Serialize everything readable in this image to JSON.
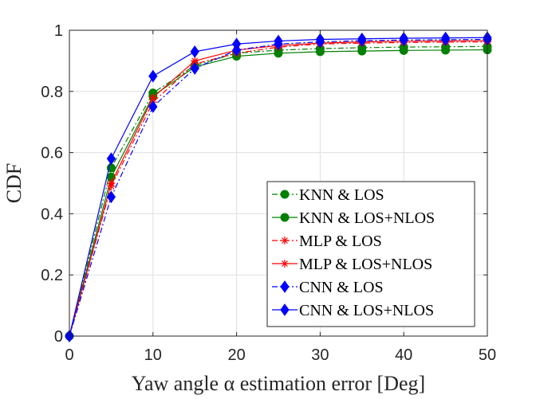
{
  "chart_data": {
    "type": "line",
    "title": "",
    "xlabel": "Yaw angle α estimation error [Deg]",
    "ylabel": "CDF",
    "xlim": [
      0,
      50
    ],
    "ylim": [
      0,
      1
    ],
    "xticks": [
      0,
      10,
      20,
      30,
      40,
      50
    ],
    "yticks": [
      0,
      0.2,
      0.4,
      0.6,
      0.8,
      1
    ],
    "xtick_labels": [
      "0",
      "10",
      "20",
      "30",
      "40",
      "50"
    ],
    "ytick_labels": [
      "0",
      "0.2",
      "0.4",
      "0.6",
      "0.8",
      "1"
    ],
    "grid": true,
    "legend_position": "bottom-right",
    "x": [
      0,
      5,
      10,
      15,
      20,
      25,
      30,
      35,
      40,
      45,
      50
    ],
    "series": [
      {
        "name": "KNN & LOS",
        "color": "#008000",
        "marker": "circle",
        "dash": "dashdot",
        "values": [
          0,
          0.55,
          0.795,
          0.885,
          0.925,
          0.935,
          0.94,
          0.943,
          0.945,
          0.946,
          0.947
        ]
      },
      {
        "name": "KNN & LOS+NLOS",
        "color": "#008000",
        "marker": "circle",
        "dash": "solid",
        "values": [
          0,
          0.52,
          0.785,
          0.88,
          0.915,
          0.925,
          0.93,
          0.932,
          0.934,
          0.935,
          0.936
        ]
      },
      {
        "name": "MLP & LOS",
        "color": "#ff0000",
        "marker": "star",
        "dash": "dashdot",
        "values": [
          0,
          0.49,
          0.765,
          0.89,
          0.925,
          0.945,
          0.955,
          0.958,
          0.96,
          0.961,
          0.962
        ]
      },
      {
        "name": "MLP & LOS+NLOS",
        "color": "#ff0000",
        "marker": "star",
        "dash": "solid",
        "values": [
          0,
          0.5,
          0.78,
          0.9,
          0.935,
          0.95,
          0.958,
          0.962,
          0.964,
          0.965,
          0.966
        ]
      },
      {
        "name": "CNN & LOS",
        "color": "#0000ff",
        "marker": "diamond",
        "dash": "dashdot",
        "values": [
          0,
          0.455,
          0.75,
          0.875,
          0.935,
          0.955,
          0.962,
          0.966,
          0.968,
          0.969,
          0.97
        ]
      },
      {
        "name": "CNN & LOS+NLOS",
        "color": "#0000ff",
        "marker": "diamond",
        "dash": "solid",
        "values": [
          0,
          0.58,
          0.85,
          0.93,
          0.955,
          0.965,
          0.97,
          0.972,
          0.974,
          0.975,
          0.976
        ]
      }
    ]
  }
}
